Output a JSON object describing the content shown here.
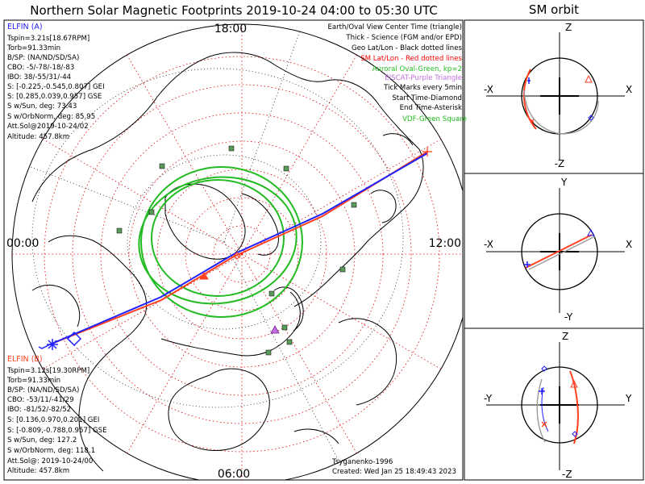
{
  "title": "Northern Solar Magnetic Footprints 2019-10-24 04:00 to 05:30 UTC",
  "orbit_title": "SM orbit",
  "mlt_labels": {
    "top": "18:00",
    "left": "00:00",
    "right": "12:00",
    "bottom": "06:00"
  },
  "elfin_a": {
    "header": "ELFIN (A)",
    "lines": [
      "Tspin=3.21s[18.67RPM]",
      "Torb=91.33min",
      "B/SP: (NA/ND/SD/SA)",
      "CBO: -5/-78/-18/-83",
      "IBO: 38/-55/31/-44",
      "S: [-0.225,-0.545,0.807] GEI",
      "S: [0.285,0.039,0.957] GSE",
      "S w/Sun, deg: 73.43",
      "S w/OrbNorm, deg: 85.95",
      "Att.Sol@2019-10-24/02",
      "Altitude: 457.8km"
    ]
  },
  "elfin_b": {
    "header": "ELFIN (B)",
    "lines": [
      "Tspin=3.12s[19.30RPM]",
      "Torb=91.33min",
      "B/SP: (NA/ND/SD/SA)",
      "CBO: -53/11/-41/29",
      "IBO: -81/52/-82/52",
      "S: [0.136,0.970,0.201] GEI",
      "S: [-0.809,-0.788,0.957] GSE",
      "S w/Sun, deg: 127.2",
      "S w/OrbNorm, deg: 118.1",
      "Att.Sol@: 2019-10-24/00",
      "Altitude: 457.8km"
    ]
  },
  "legend": [
    {
      "text": "Earth/Oval View Center Time (triangle)",
      "color": "#000000"
    },
    {
      "text": "Thick - Science (FGM and/or EPD)",
      "color": "#000000"
    },
    {
      "text": "Geo Lat/Lon - Black dotted lines",
      "color": "#000000"
    },
    {
      "text": "SM Lat/Lon - Red dotted lines",
      "color": "#ff0000"
    },
    {
      "text": "Auroral Oval-Green, kp=2",
      "color": "#22bb22"
    },
    {
      "text": "EISCAT-Purple Triangle",
      "color": "#c070e0"
    },
    {
      "text": "Tick Marks every 5min",
      "color": "#000000"
    },
    {
      "text": "Start Time-Diamond",
      "color": "#000000"
    },
    {
      "text": "End Time-Asterisk",
      "color": "#000000"
    },
    {
      "text": "VDF-Green Square",
      "color": "#22bb22"
    }
  ],
  "credit": "Tsyganenko-1996",
  "created": "Created: Wed Jan 25 18:49:43 2023",
  "orbit_panels": [
    {
      "top": "Z",
      "bottom": "-Z",
      "left": "-X",
      "right": "X"
    },
    {
      "top": "Y",
      "bottom": "-Y",
      "left": "-X",
      "right": "X"
    },
    {
      "top": "Z",
      "bottom": "-Z",
      "left": "-Y",
      "right": "Y"
    }
  ],
  "colors": {
    "elfin_a": "#2020ff",
    "elfin_b": "#ff4020",
    "oval": "#22bb22",
    "sm_grid": "#e00000",
    "geo_grid": "#000000",
    "eiscat": "#c070e0"
  },
  "chart_data": {
    "type": "scatter",
    "title": "Northern Solar Magnetic Footprints 2019-10-24 04:00 to 05:30 UTC",
    "projection": "polar, SM coordinates, MLT clock",
    "mlt_tick_labels": [
      "00:00",
      "06:00",
      "12:00",
      "18:00"
    ],
    "auroral_oval_kp": 2,
    "tick_interval_min": 5,
    "series": [
      {
        "name": "ELFIN (A)",
        "color": "#2020ff"
      },
      {
        "name": "ELFIN (B)",
        "color": "#ff4020"
      }
    ]
  }
}
